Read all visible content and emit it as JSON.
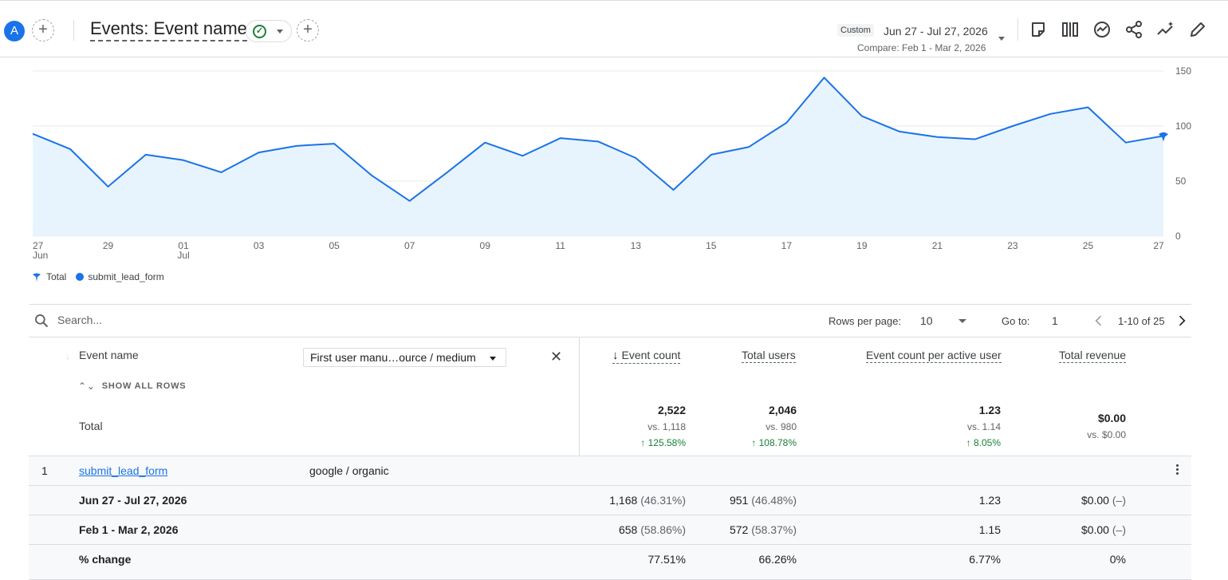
{
  "header": {
    "avatar_letter": "A",
    "title": "Events: Event name",
    "date_badge": "Custom",
    "date_range": "Jun 27 - Jul 27, 2026",
    "compare": "Compare: Feb 1 - Mar 2, 2026"
  },
  "chart_data": {
    "type": "area",
    "x": [
      "27 Jun",
      "28",
      "29",
      "30",
      "01 Jul",
      "02",
      "03",
      "04",
      "05",
      "06",
      "07",
      "08",
      "09",
      "10",
      "11",
      "12",
      "13",
      "14",
      "15",
      "16",
      "17",
      "18",
      "19",
      "20",
      "21",
      "22",
      "23",
      "24",
      "25",
      "26",
      "27"
    ],
    "x_tick_labels": [
      {
        "label": "27",
        "sub": "Jun"
      },
      {
        "label": "29"
      },
      {
        "label": "01",
        "sub": "Jul"
      },
      {
        "label": "03"
      },
      {
        "label": "05"
      },
      {
        "label": "07"
      },
      {
        "label": "09"
      },
      {
        "label": "11"
      },
      {
        "label": "13"
      },
      {
        "label": "15"
      },
      {
        "label": "17"
      },
      {
        "label": "19"
      },
      {
        "label": "21"
      },
      {
        "label": "23"
      },
      {
        "label": "25"
      },
      {
        "label": "27"
      }
    ],
    "series": [
      {
        "name": "submit_lead_form",
        "values": [
          93,
          79,
          45,
          74,
          69,
          58,
          76,
          82,
          84,
          55,
          32,
          58,
          85,
          73,
          89,
          86,
          71,
          42,
          74,
          81,
          103,
          144,
          109,
          95,
          90,
          88,
          100,
          111,
          117,
          85,
          91
        ]
      }
    ],
    "ylim": [
      0,
      150
    ],
    "y_ticks": [
      0,
      50,
      100,
      150
    ],
    "grid": true,
    "legend": [
      "Total",
      "submit_lead_form"
    ],
    "legend_position": "bottom-left"
  },
  "toolbar": {
    "search_placeholder": "Search...",
    "rows_per_page_label": "Rows per page:",
    "rows_per_page": "10",
    "goto_label": "Go to:",
    "goto_value": "1",
    "page_range": "1-10 of 25"
  },
  "table": {
    "dimension_header": "Event name",
    "show_all_rows": "SHOW ALL ROWS",
    "secondary_dimension": "First user manu…ource / medium",
    "metric_headers": [
      "Event count",
      "Total users",
      "Event count per active user",
      "Total revenue"
    ],
    "total": {
      "label": "Total",
      "event_count": "2,522",
      "event_count_vs": "vs. 1,118",
      "event_count_change": "125.58%",
      "total_users": "2,046",
      "total_users_vs": "vs. 980",
      "total_users_change": "108.78%",
      "per_user": "1.23",
      "per_user_vs": "vs. 1.14",
      "per_user_change": "8.05%",
      "revenue": "$0.00",
      "revenue_vs": "vs. $0.00"
    },
    "rows": [
      {
        "index": "1",
        "event": "submit_lead_form",
        "source": "google / organic"
      },
      {
        "label": "Jun 27 - Jul 27, 2026",
        "event_count": "1,168",
        "event_count_pct": "(46.31%)",
        "users": "951",
        "users_pct": "(46.48%)",
        "per_user": "1.23",
        "revenue": "$0.00",
        "revenue_pct": "(–)"
      },
      {
        "label": "Feb 1 - Mar 2, 2026",
        "event_count": "658",
        "event_count_pct": "(58.86%)",
        "users": "572",
        "users_pct": "(58.37%)",
        "per_user": "1.15",
        "revenue": "$0.00",
        "revenue_pct": "(–)"
      },
      {
        "label": "% change",
        "event_count": "77.51%",
        "users": "66.26%",
        "per_user": "6.77%",
        "revenue": "0%"
      }
    ]
  },
  "colors": {
    "accent": "#1a73e8",
    "area_fill": "#e8f4fd",
    "positive": "#188038"
  }
}
